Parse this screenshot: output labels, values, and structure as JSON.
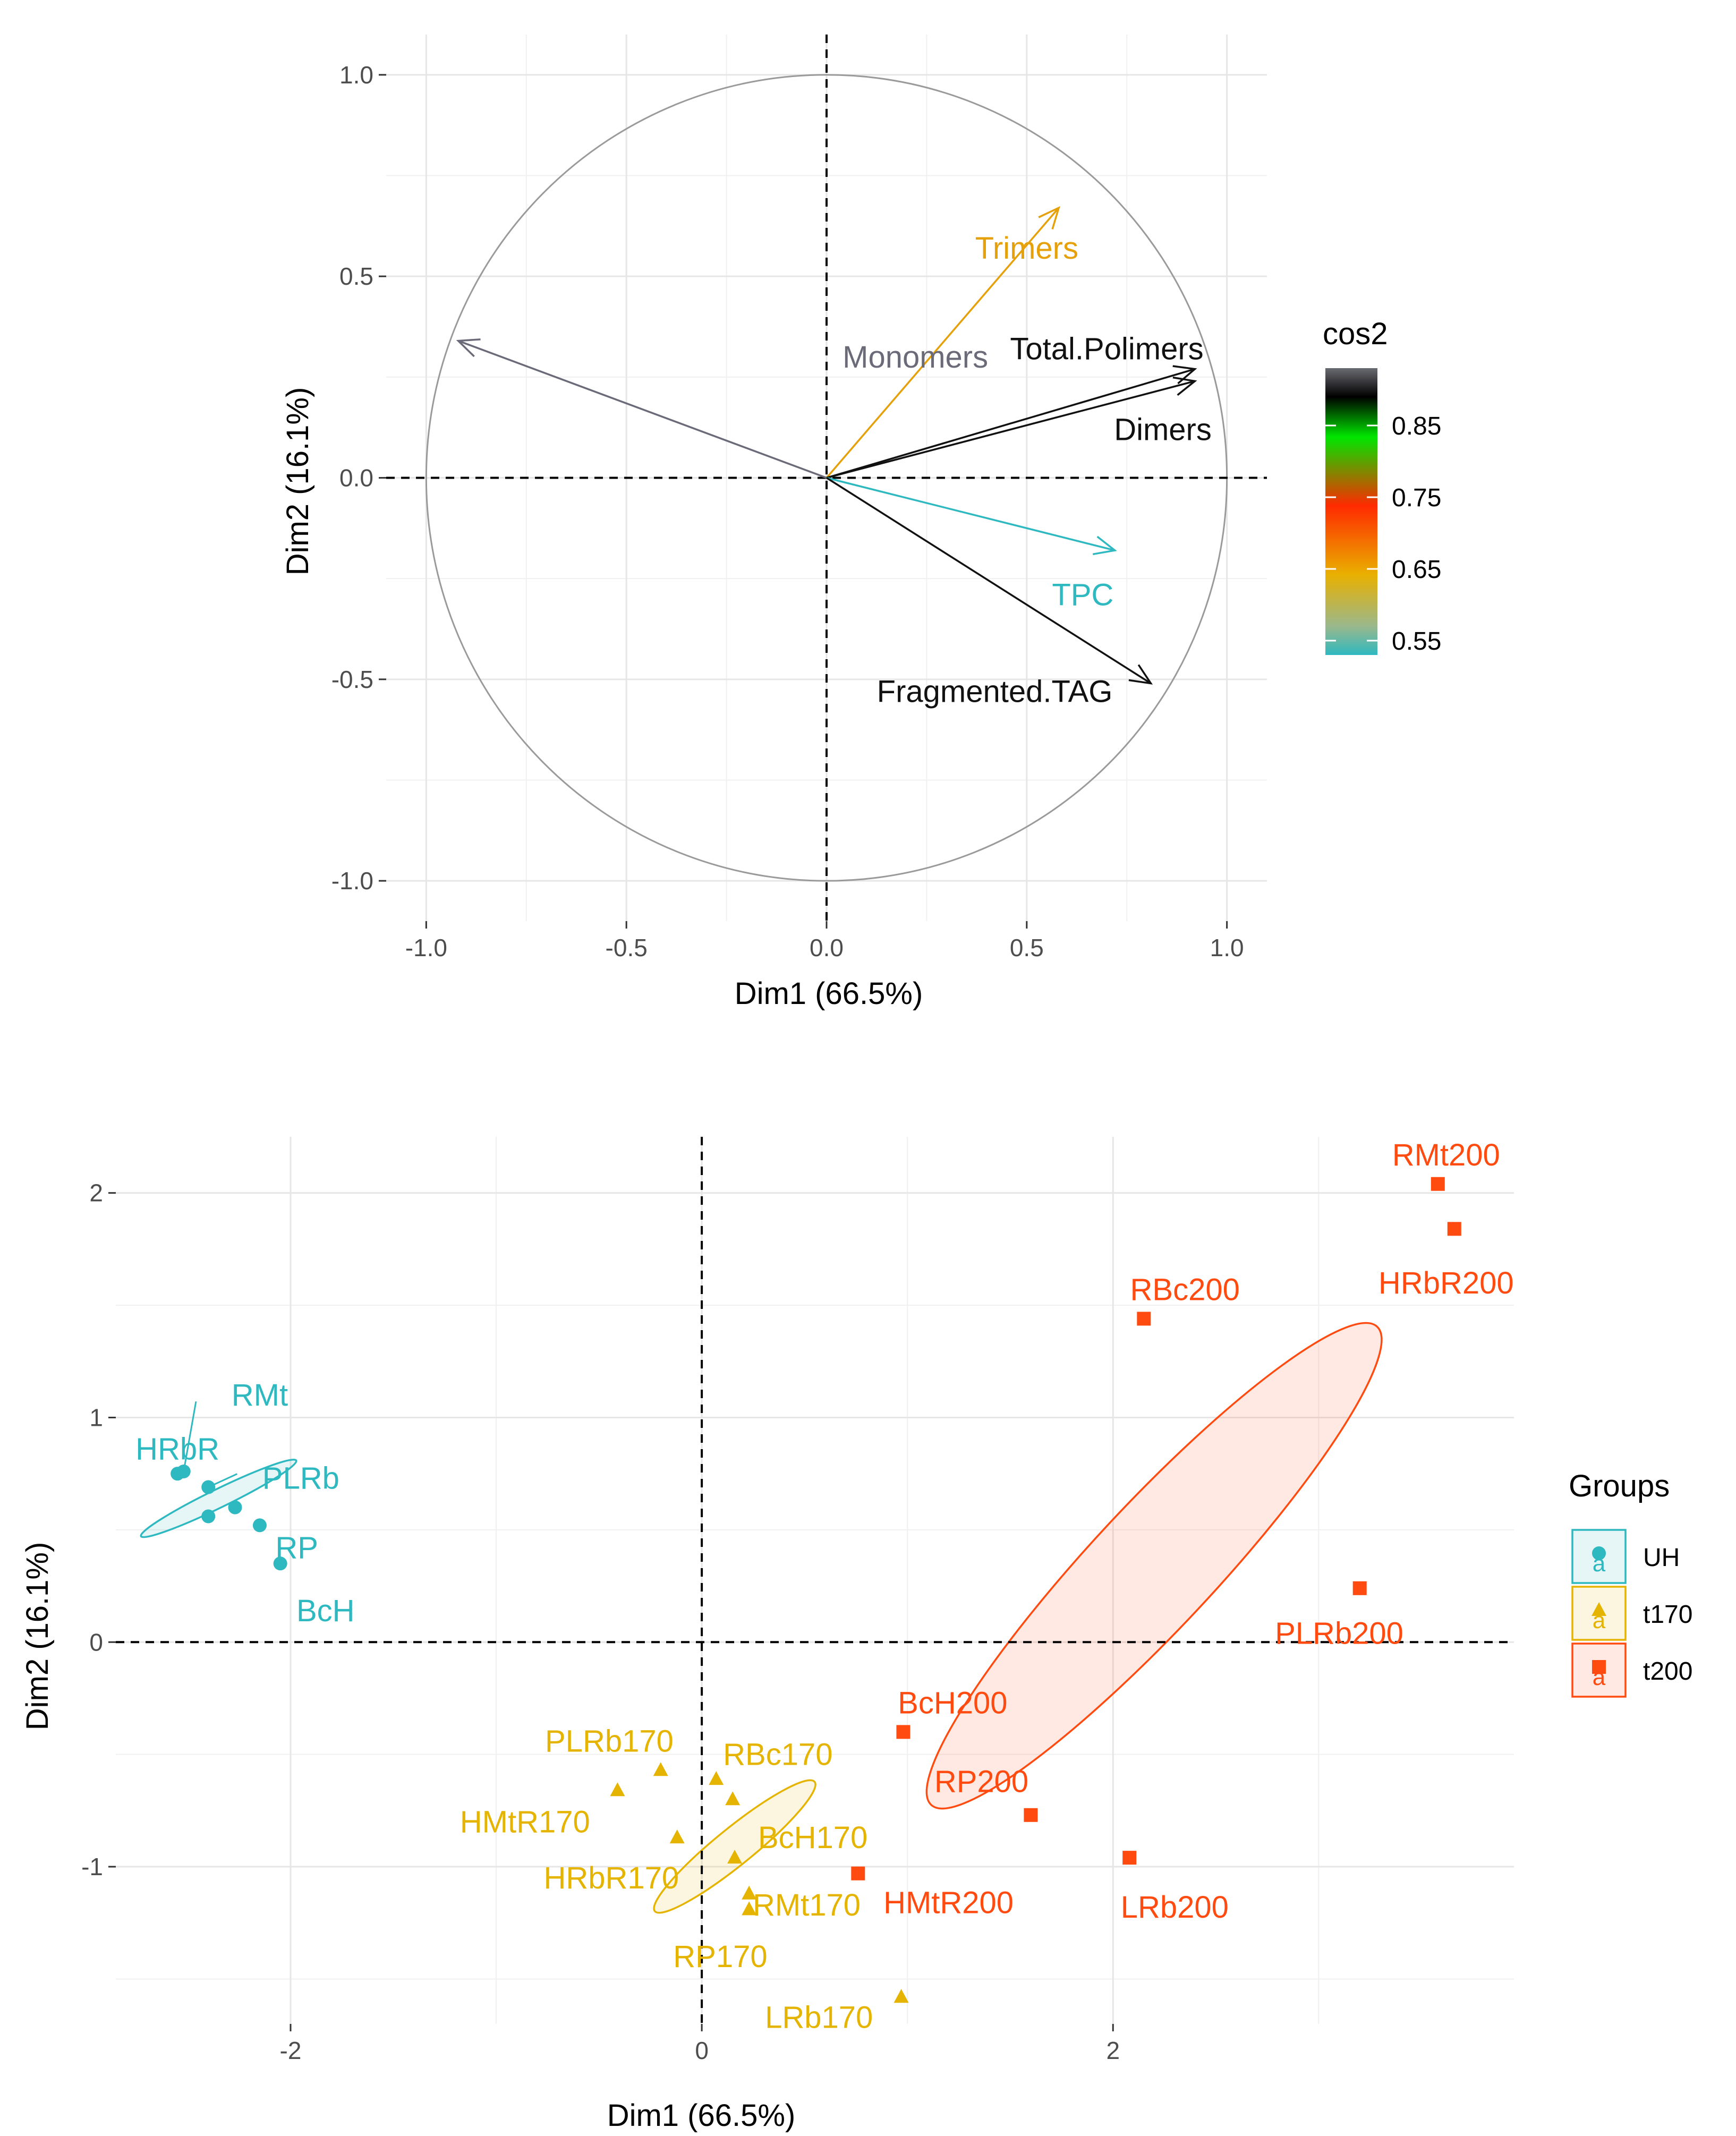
{
  "chart_data": [
    {
      "type": "scatter",
      "subtype": "pca-variables-correlation-circle",
      "xlabel": "Dim1 (66.5%)",
      "ylabel": "Dim2 (16.1%)",
      "xlim": [
        -1.1,
        1.1
      ],
      "ylim": [
        -1.1,
        1.1
      ],
      "xticks": [
        -1.0,
        -0.5,
        0.0,
        0.5,
        1.0
      ],
      "yticks": [
        -1.0,
        -0.5,
        0.0,
        0.5,
        1.0
      ],
      "xtick_labels": [
        "-1.0",
        "-0.5",
        "0.0",
        "0.5",
        "1.0"
      ],
      "ytick_labels": [
        "-1.0",
        "-0.5",
        "0.0",
        "0.5",
        "1.0"
      ],
      "grid": true,
      "legend": {
        "title": "cos2",
        "placement": "right",
        "range": [
          0.53,
          0.93
        ],
        "ticks": [
          0.55,
          0.65,
          0.75,
          0.85
        ],
        "tick_labels": [
          "0.55",
          "0.65",
          "0.75",
          "0.85"
        ],
        "colors": [
          "#2eb8c0",
          "#e9b000",
          "#ff2a00",
          "#00e600",
          "#000000",
          "#6a6a72"
        ]
      },
      "variables": [
        {
          "name": "Monomers",
          "x": -0.92,
          "y": 0.34,
          "cos2": 0.92,
          "color": "#6a6a78",
          "label_dx": 0.04,
          "label_dy": 0.3,
          "label_anchor": "start"
        },
        {
          "name": "Trimers",
          "x": 0.58,
          "y": 0.67,
          "cos2": 0.64,
          "color": "#e5a00a",
          "label_dx": 0.5,
          "label_dy": 0.57,
          "label_anchor": "middle"
        },
        {
          "name": "Total.Polimers",
          "x": 0.92,
          "y": 0.27,
          "cos2": 0.88,
          "color": "#111111",
          "label_dx": 0.7,
          "label_dy": 0.32,
          "label_anchor": "middle"
        },
        {
          "name": "Dimers",
          "x": 0.92,
          "y": 0.24,
          "cos2": 0.88,
          "color": "#111111",
          "label_dx": 0.84,
          "label_dy": 0.12,
          "label_anchor": "middle"
        },
        {
          "name": "TPC",
          "x": 0.72,
          "y": -0.18,
          "cos2": 0.55,
          "color": "#2eb8c0",
          "label_dx": 0.64,
          "label_dy": -0.29,
          "label_anchor": "middle"
        },
        {
          "name": "Fragmented.TAG",
          "x": 0.81,
          "y": -0.51,
          "cos2": 0.89,
          "color": "#111111",
          "label_dx": 0.42,
          "label_dy": -0.53,
          "label_anchor": "middle"
        }
      ]
    },
    {
      "type": "scatter",
      "subtype": "pca-individuals-by-group",
      "xlabel": "Dim1 (66.5%)",
      "ylabel": "Dim2 (16.1%)",
      "xlim": [
        -2.85,
        3.95
      ],
      "ylim": [
        -1.7,
        2.25
      ],
      "xticks": [
        -2,
        0,
        2
      ],
      "yticks": [
        -1,
        0,
        1,
        2
      ],
      "xtick_labels": [
        "-2",
        "0",
        "2"
      ],
      "ytick_labels": [
        "-1",
        "0",
        "1",
        "2"
      ],
      "grid": true,
      "legend": {
        "title": "Groups",
        "placement": "right",
        "key_text": "a",
        "entries": [
          {
            "label": "UH",
            "color": "#2eb8c0",
            "shape": "circle"
          },
          {
            "label": "t170",
            "color": "#e5b400",
            "shape": "triangle"
          },
          {
            "label": "t200",
            "color": "#ff4a10",
            "shape": "square"
          }
        ]
      },
      "groups": [
        {
          "name": "UH",
          "color": "#2eb8c0",
          "shape": "circle",
          "ellipse": {
            "cx": -2.35,
            "cy": 0.64,
            "rx": 0.42,
            "ry": 0.045,
            "angle_deg": 26
          },
          "points": [
            {
              "label": "RMt",
              "x": -2.52,
              "y": 0.76,
              "lx": -2.15,
              "ly": 1.1,
              "leader": true
            },
            {
              "label": "HRbR",
              "x": -2.55,
              "y": 0.75,
              "lx": -2.55,
              "ly": 0.86,
              "leader": false
            },
            {
              "label": "PLRb",
              "x": -2.4,
              "y": 0.69,
              "lx": -1.95,
              "ly": 0.73,
              "leader": true
            },
            {
              "label": "",
              "x": -2.27,
              "y": 0.6,
              "lx": 0,
              "ly": 0,
              "leader": false
            },
            {
              "label": "",
              "x": -2.4,
              "y": 0.56,
              "lx": 0,
              "ly": 0,
              "leader": false
            },
            {
              "label": "RP",
              "x": -2.15,
              "y": 0.52,
              "lx": -1.97,
              "ly": 0.42,
              "leader": false
            },
            {
              "label": "BcH",
              "x": -2.05,
              "y": 0.35,
              "lx": -1.83,
              "ly": 0.14,
              "leader": false
            }
          ]
        },
        {
          "name": "t170",
          "color": "#e5b400",
          "shape": "triangle",
          "ellipse": {
            "cx": 0.16,
            "cy": -0.91,
            "rx": 0.5,
            "ry": 0.09,
            "angle_deg": 39
          },
          "points": [
            {
              "label": "PLRb170",
              "x": -0.2,
              "y": -0.57,
              "lx": -0.45,
              "ly": -0.44,
              "leader": false
            },
            {
              "label": "RBc170",
              "x": 0.07,
              "y": -0.61,
              "lx": 0.37,
              "ly": -0.5,
              "leader": false
            },
            {
              "label": "HMtR170",
              "x": -0.41,
              "y": -0.66,
              "lx": -0.86,
              "ly": -0.8,
              "leader": false
            },
            {
              "label": "",
              "x": 0.15,
              "y": -0.7,
              "lx": 0,
              "ly": 0,
              "leader": false
            },
            {
              "label": "BcH170",
              "x": 0.16,
              "y": -0.96,
              "lx": 0.54,
              "ly": -0.87,
              "leader": false
            },
            {
              "label": "HRbR170",
              "x": -0.12,
              "y": -0.87,
              "lx": -0.44,
              "ly": -1.05,
              "leader": false
            },
            {
              "label": "RMt170",
              "x": 0.23,
              "y": -1.12,
              "lx": 0.51,
              "ly": -1.17,
              "leader": false
            },
            {
              "label": "RP170",
              "x": 0.23,
              "y": -1.19,
              "lx": 0.09,
              "ly": -1.4,
              "leader": false
            },
            {
              "label": "LRb170",
              "x": 0.97,
              "y": -1.58,
              "lx": 0.57,
              "ly": -1.67,
              "leader": false
            }
          ]
        },
        {
          "name": "t200",
          "color": "#ff4a10",
          "shape": "square",
          "ellipse": {
            "cx": 2.2,
            "cy": 0.34,
            "rx": 1.59,
            "ry": 0.3,
            "angle_deg": 47
          },
          "points": [
            {
              "label": "RMt200",
              "x": 3.58,
              "y": 2.04,
              "lx": 3.62,
              "ly": 2.17,
              "leader": false
            },
            {
              "label": "HRbR200",
              "x": 3.66,
              "y": 1.84,
              "lx": 3.62,
              "ly": 1.6,
              "leader": false
            },
            {
              "label": "RBc200",
              "x": 2.15,
              "y": 1.44,
              "lx": 2.35,
              "ly": 1.57,
              "leader": false
            },
            {
              "label": "PLRb200",
              "x": 3.2,
              "y": 0.24,
              "lx": 3.1,
              "ly": 0.04,
              "leader": false
            },
            {
              "label": "BcH200",
              "x": 0.98,
              "y": -0.4,
              "lx": 1.22,
              "ly": -0.27,
              "leader": false
            },
            {
              "label": "RP200",
              "x": 1.6,
              "y": -0.77,
              "lx": 1.36,
              "ly": -0.62,
              "leader": false
            },
            {
              "label": "HMtR200",
              "x": 0.76,
              "y": -1.03,
              "lx": 1.2,
              "ly": -1.16,
              "leader": false
            },
            {
              "label": "LRb200",
              "x": 2.08,
              "y": -0.96,
              "lx": 2.3,
              "ly": -1.18,
              "leader": false
            }
          ]
        }
      ]
    }
  ]
}
